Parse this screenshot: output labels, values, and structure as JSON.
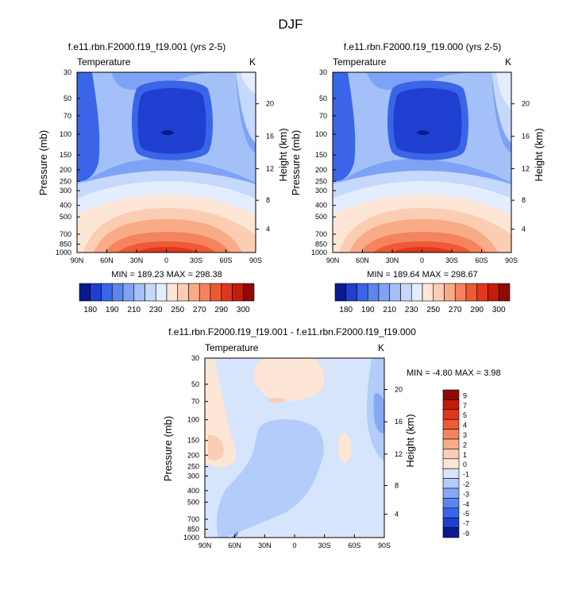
{
  "page_title": "DJF",
  "chart_data": [
    {
      "type": "heatmap",
      "id": "left",
      "title": "f.e11.rbn.F2000.f19_f19.001 (yrs 2-5)",
      "subtitle_left": "Temperature",
      "subtitle_right": "K",
      "ylabel": "Pressure (mb)",
      "ylabel_right": "Height (km)",
      "x_ticks": [
        "90N",
        "60N",
        "30N",
        "0",
        "30S",
        "60S",
        "90S"
      ],
      "y_ticks": [
        "30",
        "50",
        "70",
        "100",
        "150",
        "200",
        "250",
        "300",
        "400",
        "500",
        "700",
        "850",
        "1000"
      ],
      "height_ticks": [
        "20",
        "16",
        "12",
        "8",
        "4"
      ],
      "min_max_text": "MIN = 189.23   MAX = 298.38",
      "min": 189.23,
      "max": 298.38,
      "colorbar_labels": [
        "180",
        "190",
        "210",
        "230",
        "250",
        "270",
        "290",
        "300"
      ]
    },
    {
      "type": "heatmap",
      "id": "right",
      "title": "f.e11.rbn.F2000.f19_f19.000 (yrs 2-5)",
      "subtitle_left": "Temperature",
      "subtitle_right": "K",
      "ylabel": "Pressure (mb)",
      "ylabel_right": "Height (km)",
      "x_ticks": [
        "90N",
        "60N",
        "30N",
        "0",
        "30S",
        "60S",
        "90S"
      ],
      "y_ticks": [
        "30",
        "50",
        "70",
        "100",
        "150",
        "200",
        "250",
        "300",
        "400",
        "500",
        "700",
        "850",
        "1000"
      ],
      "height_ticks": [
        "20",
        "16",
        "12",
        "8",
        "4"
      ],
      "min_max_text": "MIN = 189.64   MAX = 298.67",
      "min": 189.64,
      "max": 298.67,
      "colorbar_labels": [
        "180",
        "190",
        "210",
        "230",
        "250",
        "270",
        "290",
        "300"
      ]
    },
    {
      "type": "heatmap",
      "id": "diff",
      "title": "f.e11.rbn.F2000.f19_f19.001 - f.e11.rbn.F2000.f19_f19.000",
      "subtitle_left": "Temperature",
      "subtitle_right": "K",
      "ylabel": "Pressure (mb)",
      "ylabel_right": "Height (km)",
      "x_ticks": [
        "90N",
        "60N",
        "30N",
        "0",
        "30S",
        "60S",
        "90S"
      ],
      "y_ticks": [
        "30",
        "50",
        "70",
        "100",
        "150",
        "200",
        "250",
        "300",
        "400",
        "500",
        "700",
        "850",
        "1000"
      ],
      "height_ticks": [
        "20",
        "16",
        "12",
        "8",
        "4"
      ],
      "min_max_text": "MIN =  -4.80  MAX =   3.98",
      "min": -4.8,
      "max": 3.98,
      "colorbar_labels": [
        "9",
        "7",
        "5",
        "4",
        "3",
        "2",
        "1",
        "0",
        "-1",
        "-2",
        "-3",
        "-4",
        "-5",
        "-7",
        "-9"
      ]
    }
  ],
  "colors": {
    "temp_scale": [
      "#0a1a8c",
      "#1e3fcf",
      "#3a65e8",
      "#5b86ef",
      "#7fa3f4",
      "#a3c0f8",
      "#c6d8fb",
      "#e4edfd",
      "#fde6d6",
      "#fbcdb2",
      "#f9ab88",
      "#f5845e",
      "#ef5a34",
      "#e0371a",
      "#c21d0c",
      "#8e0b05"
    ],
    "diff_scale": [
      "#8e0b05",
      "#c21d0c",
      "#e0371a",
      "#ef5a34",
      "#f5845e",
      "#f9ab88",
      "#fbcdb2",
      "#fde6d6",
      "#d6e4fc",
      "#b3ccf9",
      "#86a9f5",
      "#5b86ef",
      "#3a65e8",
      "#1e3fcf",
      "#0a1a8c"
    ]
  }
}
